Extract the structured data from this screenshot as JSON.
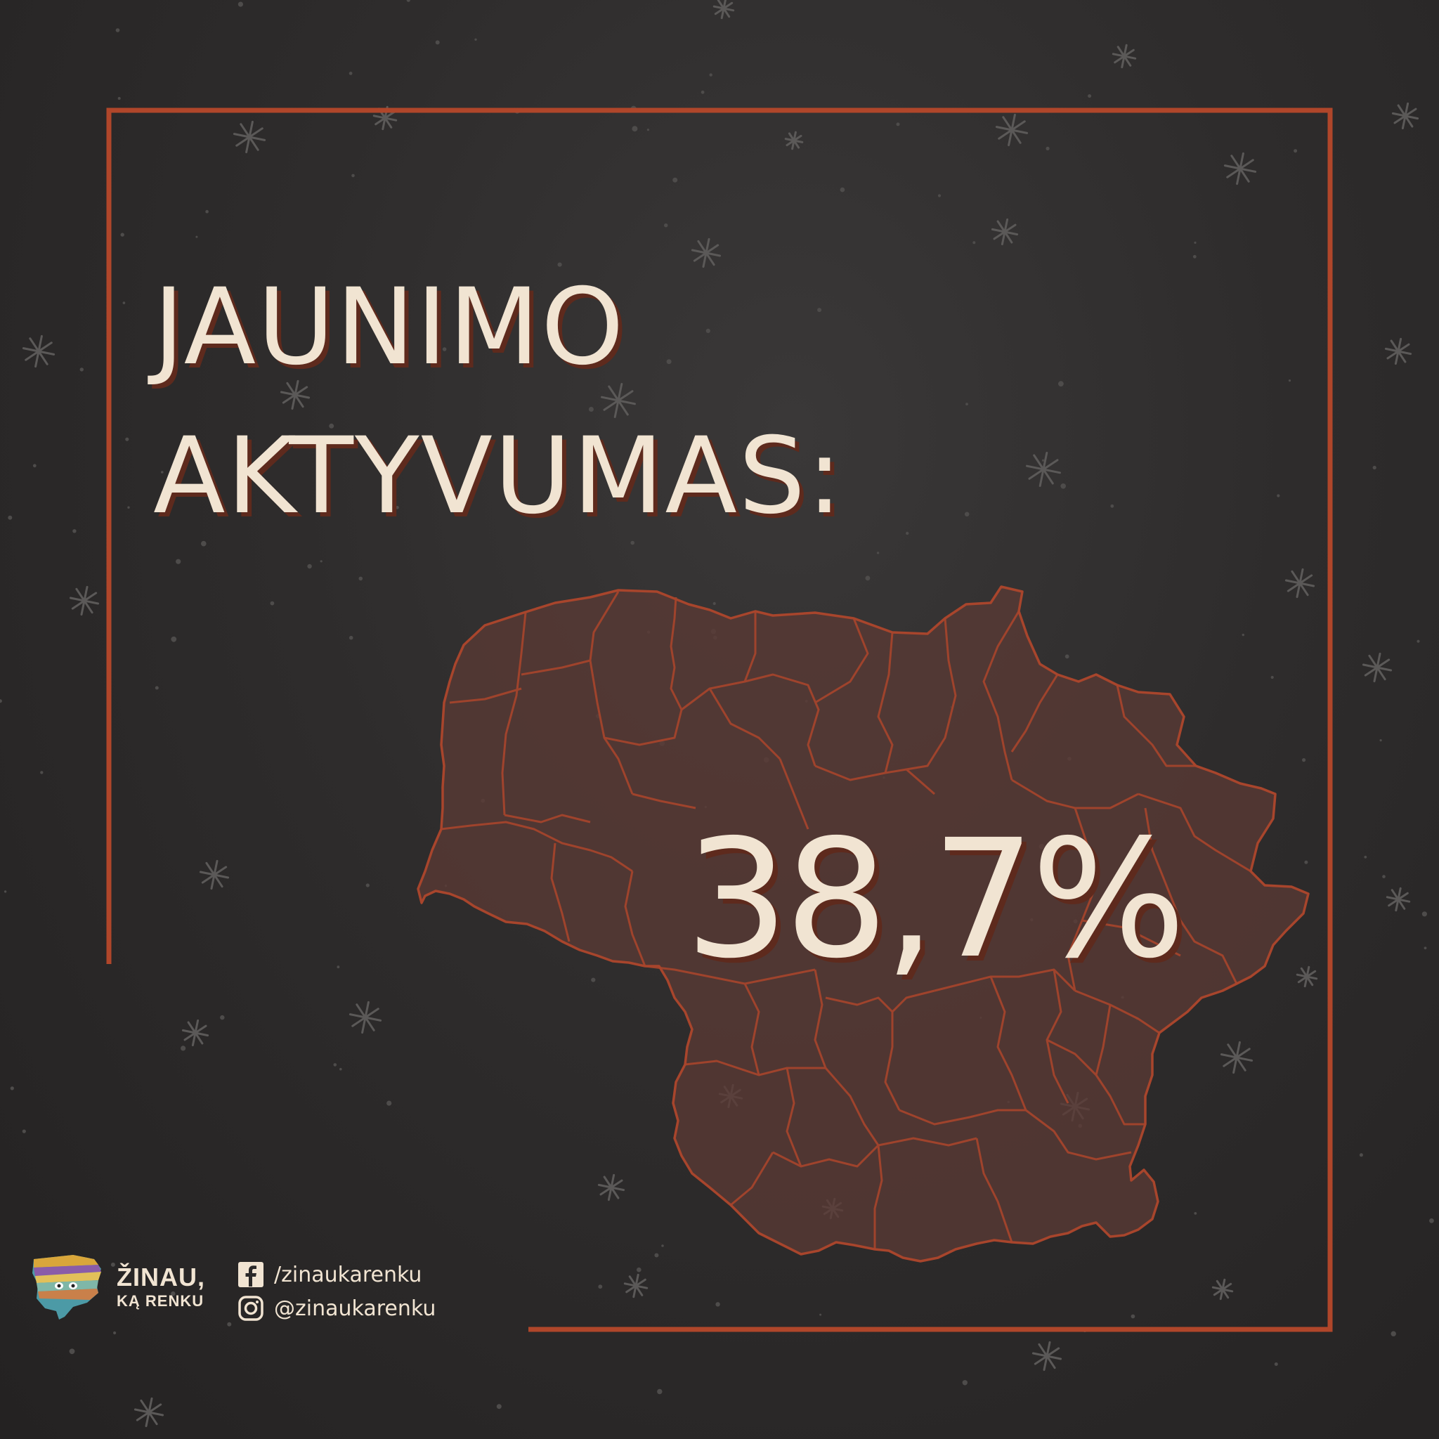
{
  "headline": {
    "line1": "JAUNIMO",
    "line2": "AKTYVUMAS:"
  },
  "stat": {
    "value": "38,7%"
  },
  "brand": {
    "line1": "ŽINAU,",
    "line2": "KĄ RENKU"
  },
  "socials": {
    "facebook": "/zinaukarenku",
    "instagram": "@zinaukarenku"
  },
  "colors": {
    "background": "#2b2929",
    "frame": "#b0462a",
    "text": "#f1e4d2",
    "map_fill": "#5a3a34",
    "map_border": "#b0462a"
  },
  "icons": {
    "map": "lithuania-map",
    "facebook": "facebook-icon",
    "instagram": "instagram-icon",
    "logo": "zinau-ka-renku-logo"
  }
}
